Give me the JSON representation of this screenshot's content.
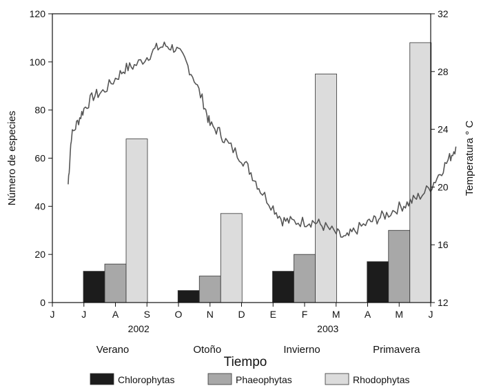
{
  "chart_data": {
    "type": "bar",
    "xlabel": "Tiempo",
    "ylabel": "Número de especies",
    "y2label": "Temperatura ° C",
    "ylim": [
      0,
      120
    ],
    "y2lim": [
      12,
      32
    ],
    "yticks": [
      0,
      20,
      40,
      60,
      80,
      100,
      120
    ],
    "y2ticks": [
      12,
      16,
      20,
      24,
      28,
      32
    ],
    "months": [
      "J",
      "J",
      "A",
      "S",
      "O",
      "N",
      "D",
      "E",
      "F",
      "M",
      "A",
      "M",
      "J"
    ],
    "years": [
      {
        "label": "2002",
        "month_index": 3
      },
      {
        "label": "2003",
        "month_index": 9
      }
    ],
    "seasons": [
      {
        "label": "Verano",
        "month_index": 2
      },
      {
        "label": "Otoño",
        "month_index": 5
      },
      {
        "label": "Invierno",
        "month_index": 8
      },
      {
        "label": "Primavera",
        "month_index": 11
      }
    ],
    "categories": [
      "Verano",
      "Otoño",
      "Invierno",
      "Primavera"
    ],
    "series": [
      {
        "name": "Chlorophytas",
        "color": "#1c1c1c",
        "values": [
          13,
          5,
          13,
          17
        ]
      },
      {
        "name": "Phaeophytas",
        "color": "#a8a8a8",
        "values": [
          16,
          11,
          20,
          30
        ]
      },
      {
        "name": "Rhodophytas",
        "color": "#dcdcdc",
        "values": [
          68,
          37,
          95,
          108
        ]
      }
    ],
    "temperature": {
      "color": "#555555",
      "points": [
        [
          0.5,
          20.2
        ],
        [
          0.6,
          23.5
        ],
        [
          0.8,
          24.5
        ],
        [
          1.0,
          25.4
        ],
        [
          1.3,
          26.3
        ],
        [
          1.6,
          26.6
        ],
        [
          2.0,
          27.5
        ],
        [
          2.3,
          28.2
        ],
        [
          2.6,
          28.4
        ],
        [
          3.0,
          29.0
        ],
        [
          3.3,
          29.6
        ],
        [
          3.6,
          29.8
        ],
        [
          3.9,
          29.6
        ],
        [
          4.2,
          28.8
        ],
        [
          4.5,
          27.5
        ],
        [
          4.8,
          25.8
        ],
        [
          5.0,
          24.3
        ],
        [
          5.3,
          23.8
        ],
        [
          5.6,
          22.9
        ],
        [
          6.0,
          22.0
        ],
        [
          6.3,
          21.0
        ],
        [
          6.6,
          19.8
        ],
        [
          7.0,
          18.6
        ],
        [
          7.3,
          17.7
        ],
        [
          7.6,
          17.6
        ],
        [
          8.0,
          17.6
        ],
        [
          8.3,
          17.6
        ],
        [
          8.6,
          17.3
        ],
        [
          9.0,
          16.8
        ],
        [
          9.3,
          16.4
        ],
        [
          9.6,
          17.0
        ],
        [
          10.0,
          17.5
        ],
        [
          10.3,
          17.8
        ],
        [
          10.6,
          18.1
        ],
        [
          11.0,
          18.6
        ],
        [
          11.3,
          18.9
        ],
        [
          11.6,
          19.3
        ],
        [
          12.0,
          20.0
        ],
        [
          12.3,
          21.0
        ],
        [
          12.6,
          22.0
        ],
        [
          12.8,
          22.8
        ]
      ]
    },
    "legend_position": "bottom"
  }
}
